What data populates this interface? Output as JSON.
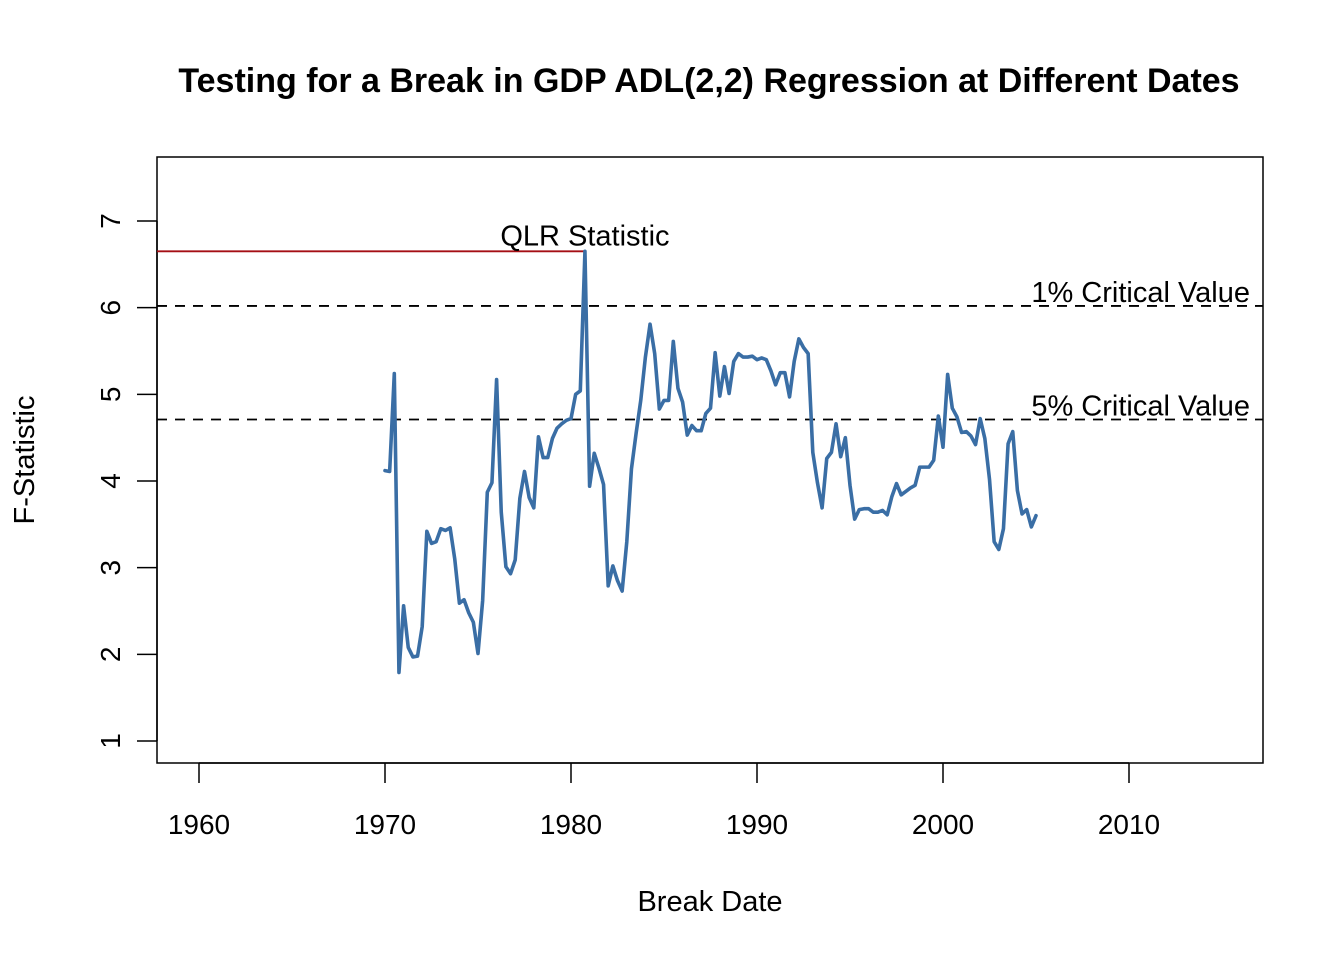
{
  "chart_data": {
    "type": "line",
    "title": "Testing for a Break in GDP ADL(2,2) Regression at Different Dates",
    "xlabel": "Break Date",
    "ylabel": "F-Statistic",
    "xlim": [
      1958.5,
      2017
    ],
    "ylim": [
      0.75,
      7.75
    ],
    "xticks": [
      1960,
      1970,
      1980,
      1990,
      2000,
      2010
    ],
    "xtick_labels": [
      "1960",
      "1970",
      "1980",
      "1990",
      "2000",
      "2010"
    ],
    "yticks": [
      1,
      2,
      3,
      4,
      5,
      6,
      7
    ],
    "ytick_labels": [
      "1",
      "2",
      "3",
      "4",
      "5",
      "6",
      "7"
    ],
    "grid": false,
    "series": [
      {
        "name": "F-Statistic",
        "color": "#3A6EA5",
        "x_start": 1970.0,
        "x_step": 0.25,
        "values": [
          4.12,
          4.11,
          5.24,
          1.79,
          2.56,
          2.08,
          1.97,
          1.98,
          2.32,
          3.42,
          3.28,
          3.3,
          3.45,
          3.43,
          3.46,
          3.1,
          2.59,
          2.63,
          2.48,
          2.37,
          2.01,
          2.62,
          3.87,
          3.98,
          5.17,
          3.64,
          3.01,
          2.93,
          3.09,
          3.8,
          4.11,
          3.81,
          3.69,
          4.51,
          4.27,
          4.27,
          4.49,
          4.61,
          4.66,
          4.7,
          4.72,
          5.0,
          5.04,
          6.65,
          3.94,
          4.32,
          4.15,
          3.96,
          2.79,
          3.02,
          2.85,
          2.73,
          3.3,
          4.14,
          4.55,
          4.93,
          5.43,
          5.81,
          5.47,
          4.83,
          4.93,
          4.93,
          5.61,
          5.07,
          4.91,
          4.53,
          4.64,
          4.58,
          4.58,
          4.78,
          4.84,
          5.48,
          4.98,
          5.32,
          5.01,
          5.38,
          5.47,
          5.43,
          5.43,
          5.44,
          5.4,
          5.42,
          5.4,
          5.27,
          5.11,
          5.25,
          5.25,
          4.97,
          5.38,
          5.64,
          5.54,
          5.47,
          4.33,
          3.98,
          3.69,
          4.26,
          4.33,
          4.66,
          4.28,
          4.5,
          3.95,
          3.56,
          3.67,
          3.68,
          3.68,
          3.64,
          3.64,
          3.66,
          3.61,
          3.82,
          3.97,
          3.84,
          3.88,
          3.92,
          3.95,
          4.16,
          4.16,
          4.16,
          4.24,
          4.75,
          4.39,
          5.23,
          4.84,
          4.74,
          4.56,
          4.57,
          4.52,
          4.42,
          4.72,
          4.49,
          4.02,
          3.3,
          3.21,
          3.45,
          4.43,
          4.57,
          3.89,
          3.62,
          3.67,
          3.47,
          3.6
        ]
      }
    ],
    "reference_lines": [
      {
        "name": "1% Critical Value",
        "label": "1% Critical Value",
        "y": 6.02,
        "style": "dashed",
        "color": "#000000"
      },
      {
        "name": "5% Critical Value",
        "label": "5% Critical Value",
        "y": 4.71,
        "style": "dashed",
        "color": "#000000"
      }
    ],
    "qlr": {
      "label": "QLR Statistic",
      "value": 6.65,
      "date": 1980.75,
      "color": "#A50F15"
    }
  }
}
